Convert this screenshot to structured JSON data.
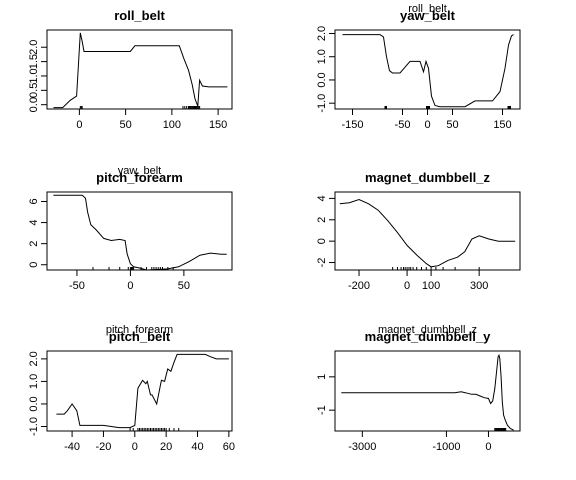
{
  "chart_data": [
    {
      "type": "line",
      "title": "roll_belt",
      "xlabel": "",
      "ylabel": "",
      "xlim": [
        -35,
        165
      ],
      "ylim": [
        -0.15,
        2.6
      ],
      "xticks": [
        0,
        50,
        100,
        150
      ],
      "yticks": [
        0.0,
        0.5,
        1.0,
        1.5,
        2.0
      ],
      "yticklabels": [
        "0.0",
        "0.5",
        "1.0",
        "1.5",
        "2.0"
      ],
      "rug": [
        1,
        2,
        3,
        112,
        114,
        116,
        118,
        119,
        120,
        121,
        122,
        123,
        124,
        125,
        126,
        127,
        128,
        129,
        130
      ],
      "x": [
        -28,
        -18,
        -10,
        -3,
        1,
        3,
        5,
        10,
        20,
        40,
        55,
        60,
        65,
        80,
        108,
        113,
        118,
        122,
        125,
        128,
        130,
        133,
        140,
        150,
        160
      ],
      "y": [
        -0.1,
        -0.1,
        0.15,
        0.3,
        2.5,
        2.2,
        1.85,
        1.85,
        1.85,
        1.85,
        1.85,
        2.05,
        2.05,
        2.05,
        2.05,
        1.6,
        1.2,
        0.7,
        0.2,
        -0.05,
        0.85,
        0.65,
        0.62,
        0.62,
        0.62
      ]
    },
    {
      "type": "line",
      "title": "yaw_belt",
      "xlabel": "roll_belt",
      "ylabel": "",
      "xlim": [
        -185,
        185
      ],
      "ylim": [
        -1.25,
        2.15
      ],
      "xticks": [
        -150,
        -50,
        0,
        50,
        150
      ],
      "yticks": [
        -1.0,
        0.0,
        1.0,
        2.0
      ],
      "yticklabels": [
        "-1.0",
        "0.0",
        "1.0",
        "2.0"
      ],
      "rug": [
        -85,
        -84,
        -83,
        -82,
        -2,
        -1,
        0,
        1,
        2,
        3,
        4,
        161,
        162,
        163,
        164,
        165,
        166
      ],
      "x": [
        -170,
        -150,
        -120,
        -95,
        -88,
        -82,
        -76,
        -70,
        -55,
        -45,
        -35,
        -15,
        -8,
        -3,
        2,
        8,
        15,
        25,
        45,
        60,
        75,
        95,
        110,
        130,
        145,
        155,
        162,
        168,
        172
      ],
      "y": [
        1.95,
        1.95,
        1.95,
        1.95,
        1.85,
        1.0,
        0.4,
        0.3,
        0.3,
        0.55,
        0.8,
        0.8,
        0.35,
        0.8,
        0.5,
        -0.7,
        -1.1,
        -1.15,
        -1.15,
        -1.15,
        -1.15,
        -0.9,
        -0.9,
        -0.9,
        -0.5,
        0.5,
        1.5,
        1.9,
        1.95
      ]
    },
    {
      "type": "line",
      "title": "pitch_forearm",
      "xlabel": "yaw_belt",
      "ylabel": "",
      "xlim": [
        -78,
        95
      ],
      "ylim": [
        -0.5,
        6.9
      ],
      "xticks": [
        -50,
        0,
        50
      ],
      "yticks": [
        0,
        2,
        4,
        6
      ],
      "yticklabels": [
        "0",
        "2",
        "4",
        "6"
      ],
      "rug": [
        -35,
        -20,
        -10,
        -2,
        0,
        1,
        2,
        3,
        10,
        15,
        20,
        22,
        24,
        26,
        28,
        30,
        35,
        40
      ],
      "x": [
        -72,
        -60,
        -50,
        -45,
        -42,
        -40,
        -37,
        -32,
        -25,
        -18,
        -10,
        -5,
        -3,
        0,
        3,
        8,
        15,
        25,
        35,
        45,
        55,
        65,
        75,
        85,
        90
      ],
      "y": [
        6.6,
        6.6,
        6.6,
        6.6,
        6.3,
        5.0,
        3.8,
        3.3,
        2.5,
        2.3,
        2.4,
        2.3,
        1.0,
        0.1,
        -0.2,
        -0.3,
        -0.5,
        -0.45,
        -0.4,
        -0.2,
        0.3,
        0.9,
        1.1,
        1.0,
        1.0
      ]
    },
    {
      "type": "line",
      "title": "magnet_dumbbell_z",
      "xlabel": "",
      "ylabel": "",
      "xlim": [
        -300,
        470
      ],
      "ylim": [
        -2.7,
        4.6
      ],
      "xticks": [
        -200,
        0,
        100,
        300
      ],
      "yticks": [
        -2,
        0,
        2,
        4
      ],
      "yticklabels": [
        "-2",
        "0",
        "2",
        "4"
      ],
      "rug": [
        -60,
        -40,
        -25,
        -15,
        -8,
        0,
        8,
        15,
        25,
        40,
        60,
        80,
        100,
        120,
        150,
        200,
        300
      ],
      "x": [
        -280,
        -240,
        -200,
        -160,
        -120,
        -80,
        -40,
        0,
        40,
        80,
        100,
        130,
        170,
        210,
        240,
        270,
        300,
        340,
        380,
        420,
        450
      ],
      "y": [
        3.5,
        3.6,
        3.9,
        3.5,
        2.9,
        1.9,
        0.8,
        -0.4,
        -1.3,
        -2.1,
        -2.4,
        -2.3,
        -1.8,
        -1.5,
        -1.0,
        0.2,
        0.5,
        0.2,
        0.0,
        0.0,
        0.0
      ]
    },
    {
      "type": "line",
      "title": "pitch_belt",
      "xlabel": "pitch_forearm",
      "ylabel": "",
      "xlim": [
        -56,
        62
      ],
      "ylim": [
        -1.2,
        2.35
      ],
      "xticks": [
        -40,
        -20,
        0,
        20,
        40,
        60
      ],
      "yticks": [
        -1.0,
        0.0,
        1.0,
        2.0
      ],
      "yticklabels": [
        "-1.0",
        "0.0",
        "1.0",
        "2.0"
      ],
      "rug": [
        -3,
        -1,
        2,
        3,
        4,
        5,
        6,
        7,
        8,
        9,
        10,
        11,
        12,
        13,
        14,
        15,
        16,
        17,
        18,
        19,
        20,
        22,
        25,
        28
      ],
      "x": [
        -50,
        -45,
        -43,
        -40,
        -37,
        -35,
        -20,
        -10,
        -5,
        -3,
        0,
        2,
        5,
        7,
        8,
        10,
        11,
        14,
        17,
        19,
        21,
        23,
        25,
        27,
        30,
        40,
        45,
        48,
        52,
        55,
        60
      ],
      "y": [
        -0.45,
        -0.45,
        -0.3,
        0.0,
        -0.3,
        -0.95,
        -0.95,
        -1.05,
        -1.05,
        -1.05,
        -0.95,
        0.7,
        1.05,
        0.9,
        1.0,
        0.4,
        0.4,
        0.0,
        1.05,
        1.0,
        1.55,
        1.45,
        1.85,
        2.2,
        2.2,
        2.2,
        2.2,
        2.1,
        2.0,
        2.0,
        2.0
      ]
    },
    {
      "type": "line",
      "title": "magnet_dumbbell_y",
      "xlabel": "magnet_dumbbell_z",
      "ylabel": "",
      "xlim": [
        -3650,
        750
      ],
      "ylim": [
        -2.25,
        2.55
      ],
      "xticks": [
        -3000,
        -1000,
        0
      ],
      "yticks": [
        -1,
        1
      ],
      "yticklabels": [
        "-1",
        "1"
      ],
      "rug": [
        150,
        170,
        190,
        210,
        230,
        250,
        270,
        290,
        310,
        330,
        350,
        370,
        390,
        410
      ],
      "x": [
        -3500,
        -2500,
        -1500,
        -800,
        -650,
        -550,
        -400,
        -300,
        -200,
        -100,
        0,
        50,
        100,
        150,
        200,
        230,
        250,
        270,
        300,
        330,
        360,
        400,
        450,
        520,
        600
      ],
      "y": [
        0.05,
        0.05,
        0.05,
        0.05,
        0.1,
        0.05,
        -0.05,
        -0.05,
        -0.15,
        -0.25,
        -0.3,
        -0.6,
        -0.45,
        0.3,
        1.5,
        2.2,
        2.3,
        2.1,
        1.0,
        -0.5,
        -1.3,
        -1.6,
        -1.9,
        -2.1,
        -2.2
      ]
    }
  ]
}
